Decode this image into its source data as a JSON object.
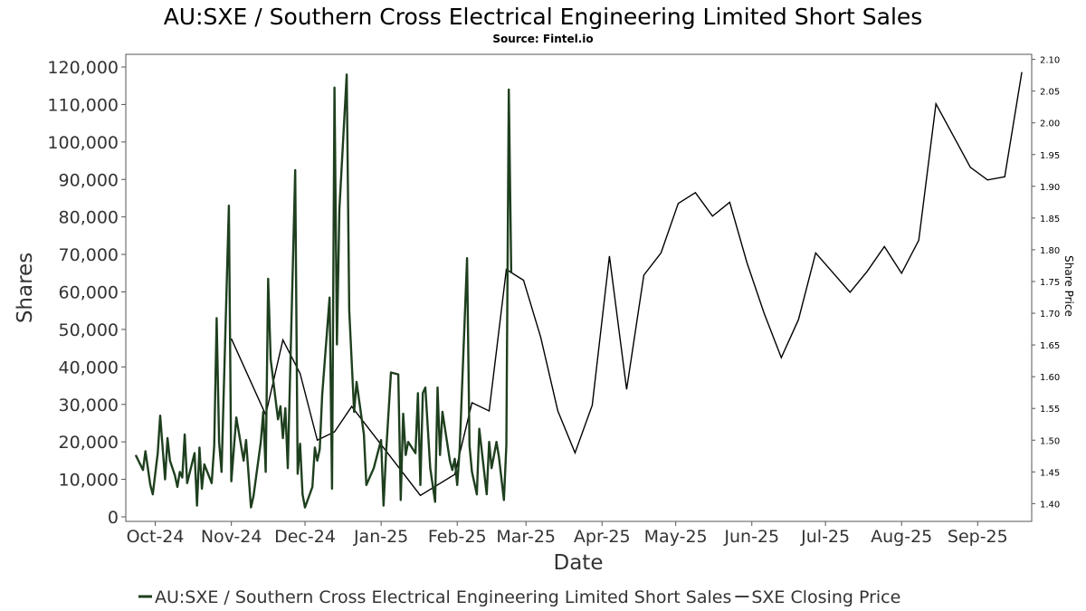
{
  "chart_data": {
    "type": "line",
    "title": "AU:SXE / Southern Cross Electrical Engineering Limited Short Sales",
    "subtitle": "Source: Fintel.io",
    "xlabel": "Date",
    "ylabel": "Shares",
    "y2label": "Share Price",
    "x_range": [
      "2024-09-19",
      "2025-09-23"
    ],
    "ylim": [
      0,
      120000
    ],
    "y2lim": [
      1.372,
      2.108
    ],
    "y_ticks": [
      "0",
      "10,000",
      "20,000",
      "30,000",
      "40,000",
      "50,000",
      "60,000",
      "70,000",
      "80,000",
      "90,000",
      "100,000",
      "110,000",
      "120,000"
    ],
    "y_tick_values": [
      0,
      10000,
      20000,
      30000,
      40000,
      50000,
      60000,
      70000,
      80000,
      90000,
      100000,
      110000,
      120000
    ],
    "y2_ticks": [
      "1.40",
      "1.45",
      "1.50",
      "1.55",
      "1.60",
      "1.65",
      "1.70",
      "1.75",
      "1.80",
      "1.85",
      "1.90",
      "1.95",
      "2.00",
      "2.05",
      "2.10"
    ],
    "y2_tick_values": [
      1.4,
      1.45,
      1.5,
      1.55,
      1.6,
      1.65,
      1.7,
      1.75,
      1.8,
      1.85,
      1.9,
      1.95,
      2.0,
      2.05,
      2.1
    ],
    "x_ticks": [
      "Oct-24",
      "Nov-24",
      "Dec-24",
      "Jan-25",
      "Feb-25",
      "Mar-25",
      "Apr-25",
      "May-25",
      "Jun-25",
      "Jul-25",
      "Aug-25",
      "Sep-25"
    ],
    "x_tick_dates": [
      "2024-10-01",
      "2024-11-01",
      "2024-12-01",
      "2025-01-01",
      "2025-02-01",
      "2025-03-01",
      "2025-04-01",
      "2025-05-01",
      "2025-06-01",
      "2025-07-01",
      "2025-08-01",
      "2025-09-01"
    ],
    "grid": false,
    "legend_position": "bottom",
    "series": [
      {
        "name": "AU:SXE / Southern Cross Electrical Engineering Limited Short Sales",
        "axis": "left",
        "color": "#1e3f1e",
        "points": [
          [
            "2024-09-23",
            16500
          ],
          [
            "2024-09-26",
            12500
          ],
          [
            "2024-09-27",
            17500
          ],
          [
            "2024-09-29",
            8500
          ],
          [
            "2024-09-30",
            6000
          ],
          [
            "2024-10-02",
            17000
          ],
          [
            "2024-10-03",
            27000
          ],
          [
            "2024-10-05",
            10000
          ],
          [
            "2024-10-06",
            21000
          ],
          [
            "2024-10-07",
            15000
          ],
          [
            "2024-10-09",
            11000
          ],
          [
            "2024-10-10",
            8000
          ],
          [
            "2024-10-11",
            12000
          ],
          [
            "2024-10-12",
            10500
          ],
          [
            "2024-10-13",
            22000
          ],
          [
            "2024-10-14",
            9000
          ],
          [
            "2024-10-17",
            17000
          ],
          [
            "2024-10-18",
            3000
          ],
          [
            "2024-10-19",
            18500
          ],
          [
            "2024-10-20",
            7500
          ],
          [
            "2024-10-21",
            14000
          ],
          [
            "2024-10-24",
            9000
          ],
          [
            "2024-10-25",
            19000
          ],
          [
            "2024-10-26",
            53000
          ],
          [
            "2024-10-27",
            20000
          ],
          [
            "2024-10-28",
            12000
          ],
          [
            "2024-10-31",
            83000
          ],
          [
            "2024-11-01",
            9500
          ],
          [
            "2024-11-03",
            26500
          ],
          [
            "2024-11-06",
            15000
          ],
          [
            "2024-11-07",
            20500
          ],
          [
            "2024-11-09",
            2500
          ],
          [
            "2024-11-10",
            5500
          ],
          [
            "2024-11-13",
            20000
          ],
          [
            "2024-11-14",
            28000
          ],
          [
            "2024-11-15",
            12000
          ],
          [
            "2024-11-16",
            63500
          ],
          [
            "2024-11-17",
            42000
          ],
          [
            "2024-11-20",
            26000
          ],
          [
            "2024-11-21",
            29500
          ],
          [
            "2024-11-22",
            21000
          ],
          [
            "2024-11-23",
            29000
          ],
          [
            "2024-11-24",
            13000
          ],
          [
            "2024-11-27",
            92500
          ],
          [
            "2024-11-28",
            11500
          ],
          [
            "2024-11-29",
            19500
          ],
          [
            "2024-11-30",
            6000
          ],
          [
            "2024-12-01",
            2500
          ],
          [
            "2024-12-04",
            8000
          ],
          [
            "2024-12-05",
            18500
          ],
          [
            "2024-12-06",
            15000
          ],
          [
            "2024-12-07",
            18000
          ],
          [
            "2024-12-08",
            32500
          ],
          [
            "2024-12-11",
            58500
          ],
          [
            "2024-12-12",
            7500
          ],
          [
            "2024-12-13",
            114500
          ],
          [
            "2024-12-14",
            46000
          ],
          [
            "2024-12-15",
            82000
          ],
          [
            "2024-12-18",
            118000
          ],
          [
            "2024-12-19",
            55000
          ],
          [
            "2024-12-21",
            28000
          ],
          [
            "2024-12-22",
            36000
          ],
          [
            "2024-12-25",
            22000
          ],
          [
            "2024-12-26",
            8500
          ],
          [
            "2024-12-29",
            13000
          ],
          [
            "2025-01-01",
            20500
          ],
          [
            "2025-01-02",
            3000
          ],
          [
            "2025-01-03",
            17000
          ],
          [
            "2025-01-05",
            38500
          ],
          [
            "2025-01-08",
            38000
          ],
          [
            "2025-01-09",
            4500
          ],
          [
            "2025-01-10",
            27500
          ],
          [
            "2025-01-11",
            16500
          ],
          [
            "2025-01-12",
            20000
          ],
          [
            "2025-01-15",
            17000
          ],
          [
            "2025-01-16",
            33000
          ],
          [
            "2025-01-17",
            8500
          ],
          [
            "2025-01-18",
            33000
          ],
          [
            "2025-01-19",
            34500
          ],
          [
            "2025-01-21",
            13000
          ],
          [
            "2025-01-23",
            4000
          ],
          [
            "2025-01-24",
            34500
          ],
          [
            "2025-01-25",
            16500
          ],
          [
            "2025-01-26",
            28000
          ],
          [
            "2025-01-29",
            15000
          ],
          [
            "2025-01-30",
            12500
          ],
          [
            "2025-01-31",
            15500
          ],
          [
            "2025-02-01",
            8500
          ],
          [
            "2025-02-02",
            18000
          ],
          [
            "2025-02-05",
            69000
          ],
          [
            "2025-02-06",
            19000
          ],
          [
            "2025-02-07",
            12000
          ],
          [
            "2025-02-09",
            6000
          ],
          [
            "2025-02-10",
            23500
          ],
          [
            "2025-02-13",
            6000
          ],
          [
            "2025-02-14",
            20000
          ],
          [
            "2025-02-15",
            13000
          ],
          [
            "2025-02-17",
            20000
          ],
          [
            "2025-02-18",
            16000
          ],
          [
            "2025-02-20",
            4500
          ],
          [
            "2025-02-21",
            19000
          ],
          [
            "2025-02-22",
            114000
          ],
          [
            "2025-02-23",
            65000
          ]
        ]
      },
      {
        "name": "SXE Closing Price",
        "axis": "right",
        "color": "#000000",
        "points": [
          [
            "2024-11-01",
            1.66
          ],
          [
            "2024-11-15",
            1.54
          ],
          [
            "2024-11-22",
            1.658
          ],
          [
            "2024-11-29",
            1.605
          ],
          [
            "2024-12-06",
            1.5
          ],
          [
            "2024-12-13",
            1.513
          ],
          [
            "2024-12-20",
            1.553
          ],
          [
            "2025-01-17",
            1.413
          ],
          [
            "2025-01-31",
            1.446
          ],
          [
            "2025-02-07",
            1.559
          ],
          [
            "2025-02-14",
            1.546
          ],
          [
            "2025-02-21",
            1.769
          ],
          [
            "2025-02-28",
            1.752
          ],
          [
            "2025-03-07",
            1.662
          ],
          [
            "2025-03-14",
            1.546
          ],
          [
            "2025-03-21",
            1.48
          ],
          [
            "2025-03-28",
            1.555
          ],
          [
            "2025-04-04",
            1.79
          ],
          [
            "2025-04-11",
            1.58
          ],
          [
            "2025-04-18",
            1.76
          ],
          [
            "2025-04-25",
            1.795
          ],
          [
            "2025-05-02",
            1.873
          ],
          [
            "2025-05-09",
            1.89
          ],
          [
            "2025-05-16",
            1.853
          ],
          [
            "2025-05-23",
            1.875
          ],
          [
            "2025-05-30",
            1.78
          ],
          [
            "2025-06-06",
            1.7
          ],
          [
            "2025-06-13",
            1.63
          ],
          [
            "2025-06-20",
            1.69
          ],
          [
            "2025-06-27",
            1.795
          ],
          [
            "2025-07-04",
            1.764
          ],
          [
            "2025-07-11",
            1.733
          ],
          [
            "2025-07-18",
            1.766
          ],
          [
            "2025-07-25",
            1.805
          ],
          [
            "2025-08-01",
            1.763
          ],
          [
            "2025-08-08",
            1.815
          ],
          [
            "2025-08-15",
            2.03
          ],
          [
            "2025-08-22",
            1.98
          ],
          [
            "2025-08-29",
            1.93
          ],
          [
            "2025-09-05",
            1.91
          ],
          [
            "2025-09-12",
            1.915
          ],
          [
            "2025-09-19",
            2.08
          ]
        ]
      }
    ]
  }
}
